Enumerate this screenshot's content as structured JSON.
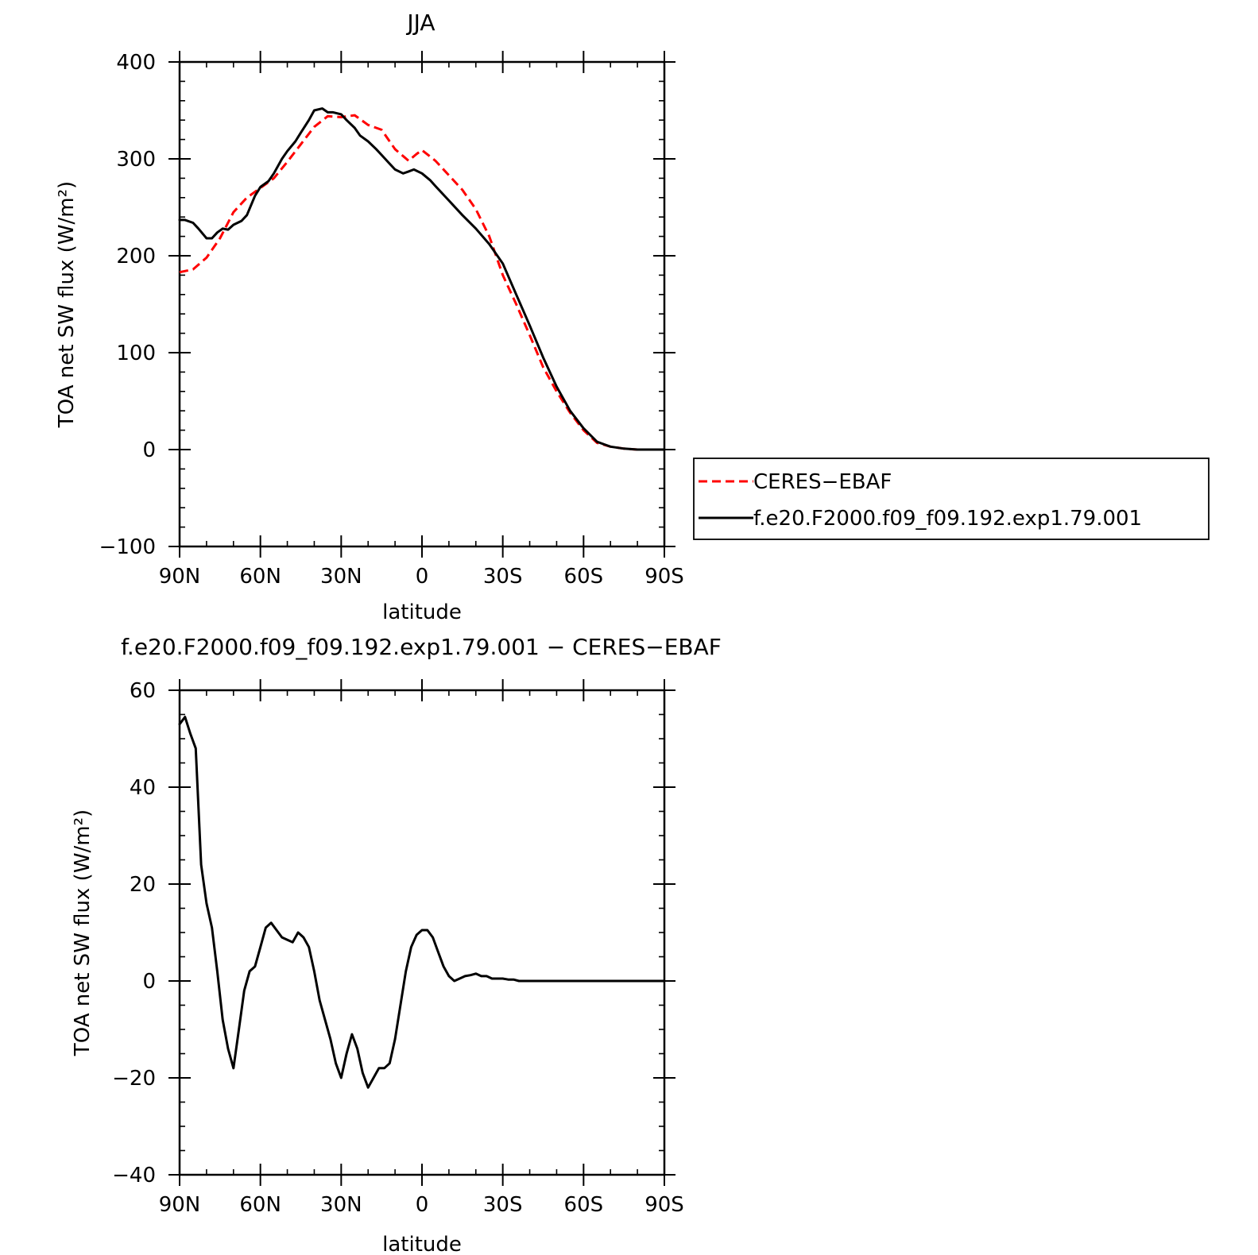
{
  "chart_data": [
    {
      "type": "line",
      "title": "JJA",
      "xlabel": "latitude",
      "ylabel": "TOA net SW flux (W/m²)",
      "xlim": [
        90,
        -90
      ],
      "ylim": [
        -100,
        400
      ],
      "x_ticks": [
        90,
        60,
        30,
        0,
        -30,
        -60,
        -90
      ],
      "x_tick_labels": [
        "90N",
        "60N",
        "30N",
        "0",
        "30S",
        "60S",
        "90S"
      ],
      "y_ticks": [
        -100,
        0,
        100,
        200,
        300,
        400
      ],
      "y_tick_labels": [
        "−100",
        "0",
        "100",
        "200",
        "300",
        "400"
      ],
      "grid": false,
      "legend": "right",
      "series": [
        {
          "name": "CERES−EBAF",
          "color": "#ff0000",
          "dash": "dashed",
          "x": [
            90,
            85,
            80,
            75,
            70,
            65,
            60,
            55,
            50,
            45,
            40,
            35,
            30,
            25,
            20,
            15,
            10,
            5,
            2,
            0,
            -5,
            -10,
            -15,
            -20,
            -25,
            -30,
            -35,
            -40,
            -45,
            -50,
            -55,
            -60,
            -65,
            -70,
            -75,
            -80,
            -85,
            -90
          ],
          "y": [
            183,
            186,
            198,
            218,
            245,
            260,
            270,
            280,
            297,
            315,
            333,
            344,
            343,
            345,
            335,
            330,
            310,
            298,
            305,
            309,
            298,
            283,
            268,
            248,
            220,
            180,
            150,
            118,
            85,
            60,
            38,
            20,
            7,
            3,
            1,
            0,
            0,
            0
          ]
        },
        {
          "name": "f.e20.F2000.f09_f09.192.exp1.79.001",
          "color": "#000000",
          "dash": "solid",
          "x": [
            90,
            88,
            85,
            83,
            80,
            78,
            76,
            74,
            72,
            70,
            67,
            65,
            62,
            60,
            57,
            55,
            52,
            50,
            47,
            45,
            42,
            40,
            37,
            35,
            33,
            30,
            28,
            25,
            23,
            20,
            17,
            15,
            12,
            10,
            7,
            5,
            3,
            0,
            -3,
            -5,
            -10,
            -15,
            -20,
            -25,
            -30,
            -35,
            -40,
            -45,
            -50,
            -55,
            -60,
            -65,
            -70,
            -75,
            -80,
            -85,
            -90
          ],
          "y": [
            237,
            237,
            234,
            228,
            218,
            218,
            224,
            228,
            227,
            232,
            236,
            242,
            262,
            271,
            277,
            285,
            300,
            308,
            318,
            327,
            340,
            350,
            352,
            348,
            348,
            346,
            340,
            332,
            324,
            318,
            310,
            304,
            295,
            289,
            285,
            287,
            289,
            285,
            278,
            272,
            257,
            242,
            228,
            212,
            192,
            160,
            128,
            95,
            65,
            40,
            22,
            8,
            3,
            1,
            0,
            0,
            0
          ]
        }
      ]
    },
    {
      "type": "line",
      "title": "f.e20.F2000.f09_f09.192.exp1.79.001 − CERES−EBAF",
      "xlabel": "latitude",
      "ylabel": "TOA net SW flux (W/m²)",
      "xlim": [
        90,
        -90
      ],
      "ylim": [
        -40,
        60
      ],
      "x_ticks": [
        90,
        60,
        30,
        0,
        -30,
        -60,
        -90
      ],
      "x_tick_labels": [
        "90N",
        "60N",
        "30N",
        "0",
        "30S",
        "60S",
        "90S"
      ],
      "y_ticks": [
        -40,
        -20,
        0,
        20,
        40,
        60
      ],
      "y_tick_labels": [
        "−40",
        "−20",
        "0",
        "20",
        "40",
        "60"
      ],
      "grid": false,
      "series": [
        {
          "color": "#000000",
          "dash": "solid",
          "x": [
            90,
            88,
            86,
            84,
            82,
            80,
            78,
            76,
            74,
            72,
            70,
            68,
            66,
            64,
            62,
            60,
            58,
            56,
            54,
            52,
            50,
            48,
            46,
            44,
            42,
            40,
            38,
            36,
            34,
            32,
            30,
            28,
            26,
            24,
            22,
            20,
            18,
            16,
            14,
            12,
            10,
            8,
            6,
            4,
            2,
            0,
            -2,
            -4,
            -6,
            -8,
            -10,
            -12,
            -14,
            -16,
            -18,
            -20,
            -22,
            -24,
            -26,
            -28,
            -30,
            -32,
            -34,
            -36,
            -38,
            -40,
            -42,
            -44,
            -46,
            -48,
            -50,
            -52,
            -54,
            -56,
            -58,
            -60,
            -62,
            -64,
            -66,
            -68,
            -70,
            -72,
            -74,
            -76,
            -78,
            -80,
            -82,
            -84,
            -86,
            -88,
            -90
          ],
          "y": [
            53,
            54.5,
            51,
            48,
            24,
            16,
            11,
            2,
            -8,
            -14,
            -18,
            -10,
            -2,
            2,
            3,
            7,
            11,
            12,
            10.5,
            9,
            8.5,
            8,
            10,
            9,
            7,
            2,
            -4,
            -8,
            -12,
            -17,
            -20,
            -15,
            -11,
            -14,
            -19,
            -22,
            -20,
            -18,
            -18,
            -17,
            -12,
            -5,
            2,
            7,
            9.5,
            10.5,
            10.5,
            9,
            6,
            3,
            1,
            0,
            0.5,
            1,
            1.2,
            1.5,
            1,
            1,
            0.5,
            0.5,
            0.5,
            0.3,
            0.3,
            0,
            0,
            0,
            0,
            0,
            0,
            0,
            0,
            0,
            0,
            0,
            0,
            0,
            0,
            0,
            0,
            0,
            0,
            0,
            0,
            0,
            0,
            0,
            0,
            0,
            0,
            0,
            0
          ]
        }
      ]
    }
  ]
}
